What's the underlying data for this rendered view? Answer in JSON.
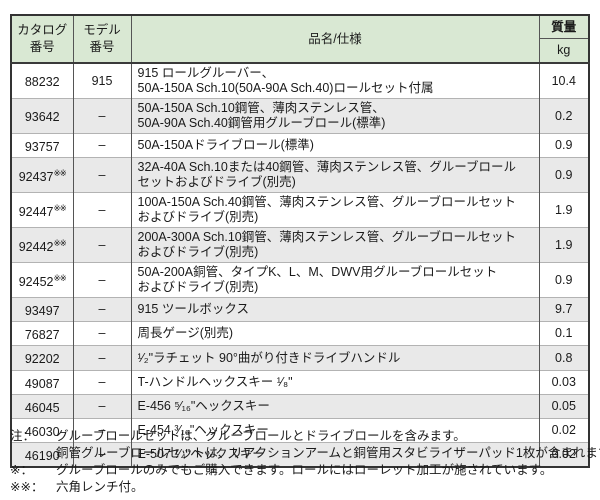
{
  "table": {
    "headers": {
      "catalog_line1": "カタログ",
      "catalog_line2": "番号",
      "model_line1": "モデル",
      "model_line2": "番号",
      "name": "品名/仕様",
      "mass": "質量",
      "mass_unit": "kg"
    },
    "rows": [
      {
        "catalog": "88232",
        "sup": "",
        "model": "915",
        "name1": "915 ロールグルーバー、",
        "name2": "50A-150A Sch.10(50A-90A Sch.40)ロールセット付属",
        "mass": "10.4"
      },
      {
        "catalog": "93642",
        "sup": "",
        "model": "–",
        "name1": "50A-150A Sch.10鋼管、薄肉ステンレス管、",
        "name2": "50A-90A Sch.40鋼管用グルーブロール(標準)",
        "mass": "0.2"
      },
      {
        "catalog": "93757",
        "sup": "",
        "model": "–",
        "name1": "50A-150Aドライブロール(標準)",
        "name2": "",
        "mass": "0.9"
      },
      {
        "catalog": "92437",
        "sup": "※※",
        "model": "–",
        "name1": "32A-40A Sch.10または40鋼管、薄肉ステンレス管、グルーブロール",
        "name2": "セットおよびドライブ(別売)",
        "mass": "0.9"
      },
      {
        "catalog": "92447",
        "sup": "※※",
        "model": "–",
        "name1": "100A-150A Sch.40鋼管、薄肉ステンレス管、グルーブロールセット",
        "name2": "およびドライブ(別売)",
        "mass": "1.9"
      },
      {
        "catalog": "92442",
        "sup": "※※",
        "model": "–",
        "name1": "200A-300A Sch.10鋼管、薄肉ステンレス管、グルーブロールセット",
        "name2": "およびドライブ(別売)",
        "mass": "1.9"
      },
      {
        "catalog": "92452",
        "sup": "※※",
        "model": "–",
        "name1": "50A-200A銅管、タイプK、L、M、DWV用グルーブロールセット",
        "name2": "およびドライブ(別売)",
        "mass": "0.9"
      },
      {
        "catalog": "93497",
        "sup": "",
        "model": "–",
        "name1": "915 ツールボックス",
        "name2": "",
        "mass": "9.7"
      },
      {
        "catalog": "76827",
        "sup": "",
        "model": "–",
        "name1": "周長ゲージ(別売)",
        "name2": "",
        "mass": "0.1"
      },
      {
        "catalog": "92202",
        "sup": "",
        "model": "–",
        "name1": "¹⁄₂\"ラチェット 90°曲がり付きドライブハンドル",
        "name2": "",
        "mass": "0.8"
      },
      {
        "catalog": "49087",
        "sup": "",
        "model": "–",
        "name1": "T-ハンドルヘックスキー ¹⁄₈\"",
        "name2": "",
        "mass": "0.03"
      },
      {
        "catalog": "46045",
        "sup": "",
        "model": "–",
        "name1": "E-456 ⁵⁄₁₆\"ヘックスキー",
        "name2": "",
        "mass": "0.05"
      },
      {
        "catalog": "46030",
        "sup": "",
        "model": "–",
        "name1": "E-454 ³⁄₁₆\"ヘックスキー",
        "name2": "",
        "mass": "0.02"
      },
      {
        "catalog": "46190",
        "sup": "",
        "model": "–",
        "name1": "E-507 ¹⁄₄\"ヘックスキー",
        "name2": "",
        "mass": "0.02"
      }
    ]
  },
  "notes": [
    {
      "label": "注：",
      "text": "グルーブロールセットは、グルーブロールとドライブロールを含みます。"
    },
    {
      "label": "",
      "text": "銅管グルーブロールセットは、リアクションアームと銅管用スタビライザーパッド1枚が含まれます。"
    },
    {
      "label": "※：",
      "text": "グルーブロールのみでもご購入できます。ロールにはローレット加工が施されています。"
    },
    {
      "label": "※※：",
      "text": "六角レンチ付。"
    }
  ],
  "colors": {
    "header_green": "#d9e8d3",
    "row_alt_gray": "#e9e9e9",
    "border_dark": "#333333",
    "text": "#1a1a1a"
  }
}
